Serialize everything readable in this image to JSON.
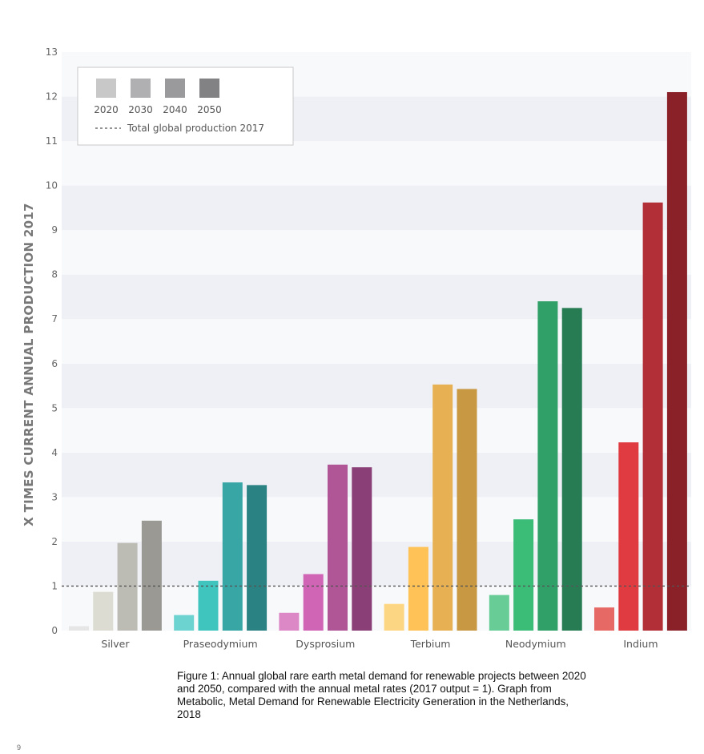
{
  "chart_data": {
    "type": "bar",
    "categories": [
      "Silver",
      "Praseodymium",
      "Dysprosium",
      "Terbium",
      "Neodymium",
      "Indium"
    ],
    "series": [
      {
        "name": "2020",
        "values": [
          0.1,
          0.35,
          0.4,
          0.6,
          0.8,
          0.52
        ]
      },
      {
        "name": "2030",
        "values": [
          0.87,
          1.12,
          1.27,
          1.88,
          2.5,
          4.23
        ]
      },
      {
        "name": "2040",
        "values": [
          1.97,
          3.33,
          3.73,
          5.53,
          7.4,
          9.62
        ]
      },
      {
        "name": "2050",
        "values": [
          2.47,
          3.27,
          3.67,
          5.43,
          7.25,
          12.1
        ]
      }
    ],
    "reference_line": {
      "label": "Total global production 2017",
      "value": 1,
      "style": "dashed",
      "color": "#555555"
    },
    "ylabel": "X TIMES CURRENT ANNUAL PRODUCTION 2017",
    "ylim": [
      0,
      13
    ],
    "yticks": [
      0,
      1,
      2,
      3,
      4,
      5,
      6,
      7,
      8,
      9,
      10,
      11,
      12,
      13
    ],
    "grid": "alternating horizontal bands",
    "legend_position": "top-left",
    "legend_swatches": [
      "#c8c8c8",
      "#b0b0b2",
      "#9a9a9c",
      "#828284"
    ],
    "colors": {
      "Silver": [
        "#e6e6e6",
        "#dcdcd2",
        "#bdbcb4",
        "#9a9993"
      ],
      "Praseodymium": [
        "#6dd3d0",
        "#40c4be",
        "#39a6a6",
        "#2b8282"
      ],
      "Dysprosium": [
        "#dc88c6",
        "#cf65b4",
        "#b05596",
        "#8b3f77"
      ],
      "Terbium": [
        "#fdd683",
        "#fec256",
        "#e7b153",
        "#c89843"
      ],
      "Neodymium": [
        "#68cc96",
        "#3bbd78",
        "#31a068",
        "#287c54"
      ],
      "Indium": [
        "#e76966",
        "#df3b40",
        "#b32f37",
        "#8a2128"
      ]
    }
  },
  "caption": "Figure 1: Annual global rare earth metal demand for renewable projects between 2020 and 2050, compared with the annual metal rates (2017 output = 1). Graph from Metabolic, Metal Demand for Renewable Electricity Generation in the Netherlands, 2018",
  "page_number": "9"
}
